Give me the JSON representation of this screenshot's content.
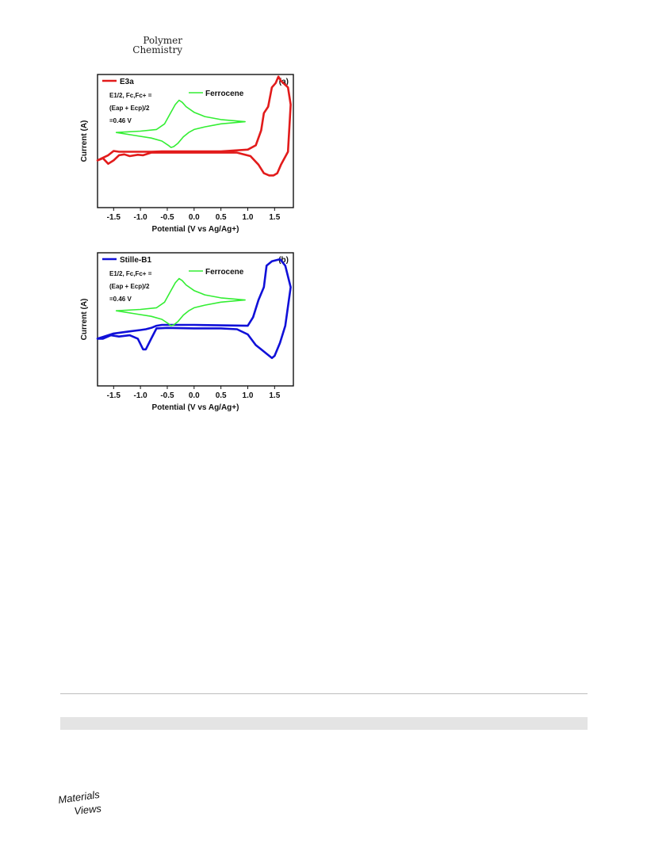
{
  "header": {
    "journal_line1": "Polymer",
    "journal_line2": "Chemistry"
  },
  "logo": {
    "line1": "Materials",
    "line2": "Views"
  },
  "colors": {
    "e3a": "#e21b1b",
    "stille": "#1010d8",
    "ferrocene": "#33ee33",
    "axis": "#111111"
  },
  "chart_data": [
    {
      "type": "line",
      "panel": "(a)",
      "xlabel": "Potential (V vs Ag/Ag+)",
      "ylabel": "Current (A)",
      "xlim": [
        -1.8,
        1.85
      ],
      "ylim": [
        -1.4,
        1.7
      ],
      "xticks": [
        -1.5,
        -1.0,
        -0.5,
        0.0,
        0.5,
        1.0,
        1.5
      ],
      "xtick_labels": [
        "-1.5",
        "-1.0",
        "-0.5",
        "0.0",
        "0.5",
        "1.0",
        "1.5"
      ],
      "annotation": {
        "line1": "E1/2, Fc,Fc+ =",
        "line2": "(Eap + Ecp)/2",
        "line3": "=0.46 V"
      },
      "series": [
        {
          "name": "E3a",
          "color": "#e21b1b",
          "x": [
            -1.8,
            -1.6,
            -1.5,
            -1.4,
            -1.2,
            -1.0,
            -0.8,
            -0.6,
            0.0,
            0.5,
            1.0,
            1.15,
            1.25,
            1.3,
            1.38,
            1.45,
            1.52,
            1.57,
            1.62,
            1.75,
            1.8,
            1.75,
            1.62,
            1.55,
            1.48,
            1.4,
            1.3,
            1.2,
            1.05,
            0.8,
            0.5,
            0.0,
            -0.5,
            -0.65,
            -0.8,
            -0.95,
            -1.05,
            -1.2,
            -1.3,
            -1.4,
            -1.5,
            -1.6,
            -1.7,
            -1.8
          ],
          "y": [
            -0.3,
            -0.18,
            -0.08,
            -0.1,
            -0.1,
            -0.1,
            -0.1,
            -0.09,
            -0.09,
            -0.09,
            -0.05,
            0.05,
            0.4,
            0.8,
            0.95,
            1.4,
            1.5,
            1.65,
            1.55,
            1.4,
            1.0,
            -0.1,
            -0.4,
            -0.6,
            -0.65,
            -0.65,
            -0.6,
            -0.4,
            -0.2,
            -0.12,
            -0.12,
            -0.12,
            -0.12,
            -0.12,
            -0.12,
            -0.18,
            -0.17,
            -0.2,
            -0.16,
            -0.18,
            -0.3,
            -0.38,
            -0.25,
            -0.3
          ]
        },
        {
          "name": "Ferrocene",
          "color": "#33ee33",
          "x": [
            -1.45,
            -1.0,
            -0.7,
            -0.55,
            -0.45,
            -0.35,
            -0.28,
            -0.22,
            -0.15,
            0.0,
            0.2,
            0.5,
            0.95,
            0.5,
            0.2,
            0.0,
            -0.1,
            -0.2,
            -0.3,
            -0.38,
            -0.43,
            -0.48,
            -0.6,
            -0.8,
            -1.1,
            -1.45
          ],
          "y": [
            0.35,
            0.38,
            0.42,
            0.55,
            0.78,
            1.0,
            1.1,
            1.05,
            0.95,
            0.82,
            0.72,
            0.65,
            0.6,
            0.55,
            0.48,
            0.42,
            0.35,
            0.25,
            0.1,
            0.02,
            0.0,
            0.05,
            0.15,
            0.22,
            0.28,
            0.35
          ]
        }
      ]
    },
    {
      "type": "line",
      "panel": "(b)",
      "xlabel": "Potential (V vs Ag/Ag+)",
      "ylabel": "Current (A)",
      "xlim": [
        -1.8,
        1.85
      ],
      "ylim": [
        -1.4,
        1.7
      ],
      "xticks": [
        -1.5,
        -1.0,
        -0.5,
        0.0,
        0.5,
        1.0,
        1.5
      ],
      "xtick_labels": [
        "-1.5",
        "-1.0",
        "-0.5",
        "0.0",
        "0.5",
        "1.0",
        "1.5"
      ],
      "annotation": {
        "line1": "E1/2, Fc,Fc+ =",
        "line2": "(Eap + Ecp)/2",
        "line3": "=0.46 V"
      },
      "series": [
        {
          "name": "Stille-B1",
          "color": "#1010d8",
          "x": [
            -1.8,
            -1.5,
            -1.2,
            -1.0,
            -0.9,
            -0.8,
            -0.7,
            -0.6,
            -0.5,
            0.0,
            0.5,
            1.0,
            1.1,
            1.2,
            1.3,
            1.35,
            1.45,
            1.6,
            1.7,
            1.8,
            1.7,
            1.6,
            1.5,
            1.45,
            1.35,
            1.25,
            1.15,
            1.0,
            0.8,
            0.5,
            0.0,
            -0.5,
            -0.7,
            -0.8,
            -0.9,
            -0.95,
            -1.05,
            -1.2,
            -1.4,
            -1.55,
            -1.7,
            -1.8
          ],
          "y": [
            -0.3,
            -0.18,
            -0.13,
            -0.1,
            -0.08,
            -0.05,
            0.0,
            0.02,
            0.02,
            0.02,
            0.01,
            0.0,
            0.2,
            0.6,
            0.9,
            1.4,
            1.5,
            1.55,
            1.4,
            0.9,
            0.0,
            -0.4,
            -0.7,
            -0.75,
            -0.65,
            -0.55,
            -0.45,
            -0.2,
            -0.08,
            -0.06,
            -0.06,
            -0.05,
            -0.06,
            -0.3,
            -0.55,
            -0.55,
            -0.3,
            -0.22,
            -0.25,
            -0.22,
            -0.3,
            -0.3
          ]
        },
        {
          "name": "Ferrocene",
          "color": "#33ee33",
          "x": [
            -1.45,
            -1.0,
            -0.7,
            -0.55,
            -0.45,
            -0.35,
            -0.28,
            -0.22,
            -0.15,
            0.0,
            0.2,
            0.5,
            0.95,
            0.5,
            0.2,
            0.0,
            -0.1,
            -0.2,
            -0.3,
            -0.38,
            -0.43,
            -0.48,
            -0.6,
            -0.8,
            -1.1,
            -1.45
          ],
          "y": [
            0.35,
            0.38,
            0.42,
            0.55,
            0.78,
            1.0,
            1.1,
            1.05,
            0.95,
            0.82,
            0.72,
            0.65,
            0.6,
            0.55,
            0.48,
            0.42,
            0.35,
            0.25,
            0.1,
            0.02,
            0.0,
            0.05,
            0.15,
            0.22,
            0.28,
            0.35
          ]
        }
      ]
    }
  ]
}
